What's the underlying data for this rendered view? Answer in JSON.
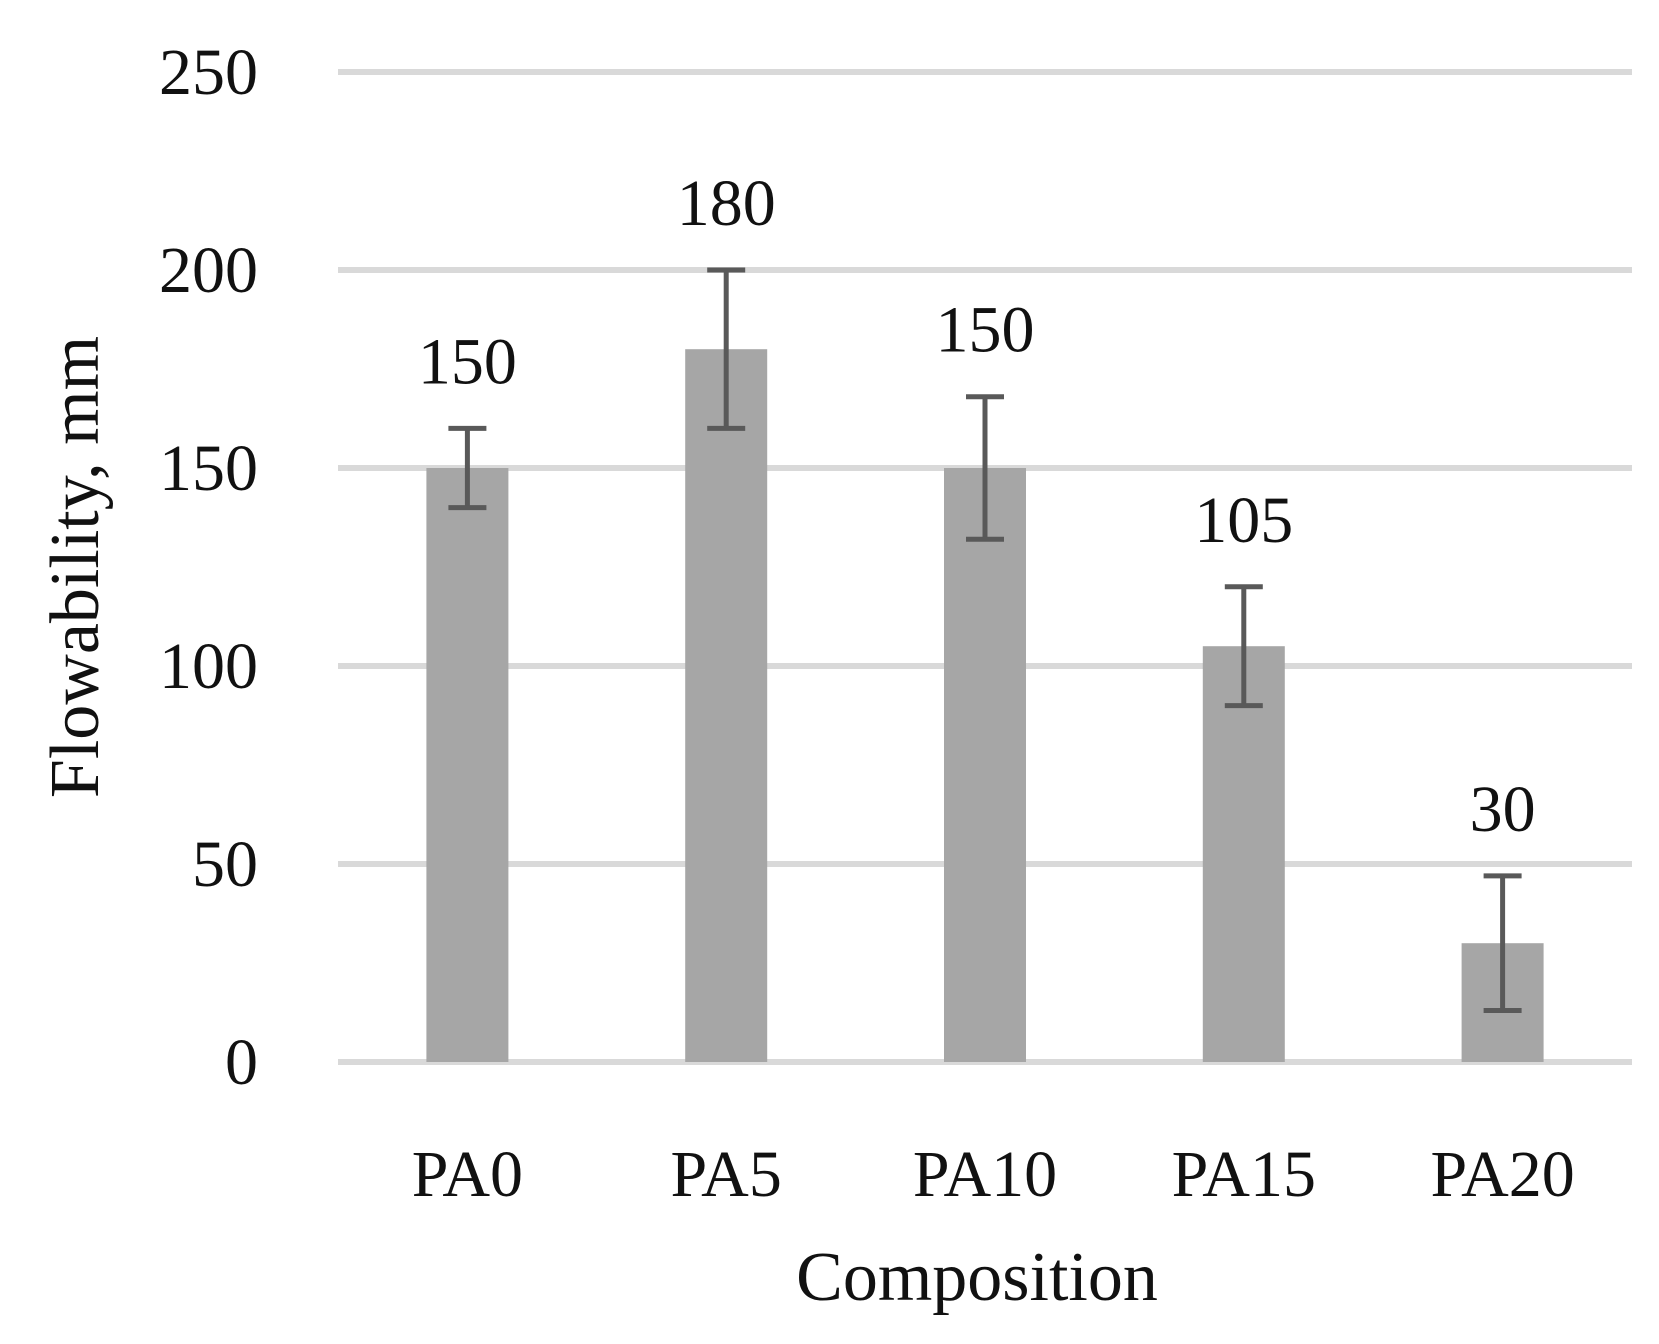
{
  "chart_data": {
    "type": "bar",
    "categories": [
      "PA0",
      "PA5",
      "PA10",
      "PA15",
      "PA20"
    ],
    "values": [
      150,
      180,
      150,
      105,
      30
    ],
    "error_low": [
      140,
      160,
      132,
      90,
      13
    ],
    "error_high": [
      160,
      200,
      168,
      120,
      47
    ],
    "data_labels": [
      "150",
      "180",
      "150",
      "105",
      "30"
    ],
    "xlabel": "Composition",
    "ylabel": "Flowability, mm",
    "ylim": [
      0,
      250
    ],
    "yticks": [
      0,
      50,
      100,
      150,
      200,
      250
    ],
    "ytick_labels": [
      "0",
      "50",
      "100",
      "150",
      "200",
      "250"
    ],
    "grid": true,
    "legend": "none",
    "colors": {
      "bar": "#a6a6a6",
      "error_bar": "#595959",
      "grid": "#d9d9d9",
      "text": "#111111"
    }
  }
}
